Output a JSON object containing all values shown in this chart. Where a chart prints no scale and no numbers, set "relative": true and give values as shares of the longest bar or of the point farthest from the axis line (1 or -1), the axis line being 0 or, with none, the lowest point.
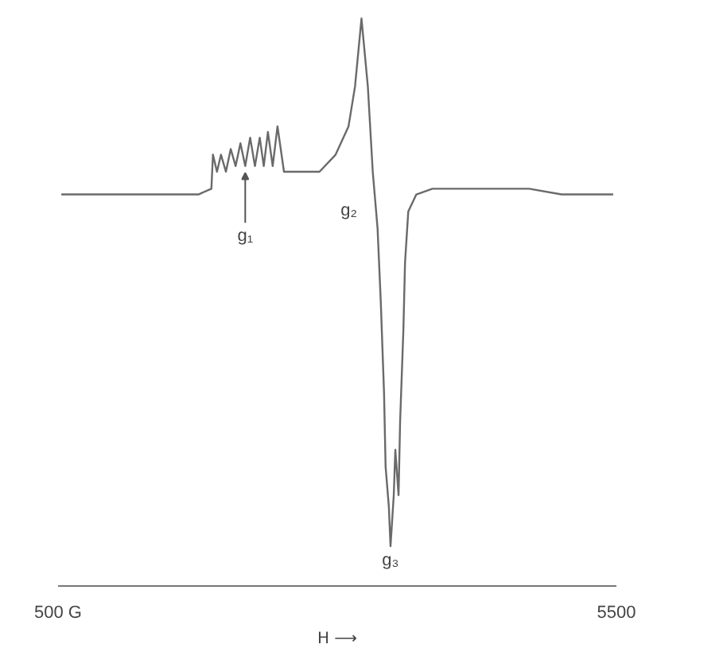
{
  "chart_data": {
    "type": "line",
    "relative": true,
    "xlabel": "H ⟶",
    "x": [
      529,
      818,
      1107,
      1396,
      1757,
      1873,
      1887,
      1923,
      1959,
      2003,
      2046,
      2090,
      2133,
      2176,
      2220,
      2263,
      2306,
      2342,
      2379,
      2422,
      2465,
      2523,
      2696,
      2841,
      2985,
      3101,
      3159,
      3217,
      3274,
      3318,
      3361,
      3390,
      3419,
      3433,
      3462,
      3477,
      3506,
      3520,
      3549,
      3563,
      3592,
      3607,
      3636,
      3708,
      3852,
      4286,
      4719,
      5008,
      5471
    ],
    "series": [
      {
        "color": "#6a6a6a",
        "values": [
          0.69,
          0.69,
          0.69,
          0.69,
          0.69,
          0.7,
          0.76,
          0.73,
          0.76,
          0.73,
          0.77,
          0.74,
          0.78,
          0.74,
          0.79,
          0.74,
          0.79,
          0.74,
          0.8,
          0.74,
          0.81,
          0.73,
          0.73,
          0.73,
          0.76,
          0.81,
          0.88,
          1.0,
          0.88,
          0.73,
          0.63,
          0.5,
          0.34,
          0.21,
          0.14,
          0.07,
          0.16,
          0.24,
          0.16,
          0.29,
          0.45,
          0.57,
          0.66,
          0.69,
          0.7,
          0.7,
          0.7,
          0.69,
          0.69
        ]
      }
    ],
    "xlim": [
      500,
      5500
    ],
    "xticks": [
      {
        "value": 500,
        "label": "500 G"
      },
      5500
    ],
    "annotations": [
      {
        "text": "g₁",
        "x": 2176,
        "y": 0.74
      },
      {
        "text": "g₂",
        "x": 3303,
        "y": 0.7
      },
      {
        "text": "g₃",
        "x": 3477,
        "y": 0.07
      }
    ],
    "grid": false,
    "marker": "none",
    "line_style": "solid"
  }
}
